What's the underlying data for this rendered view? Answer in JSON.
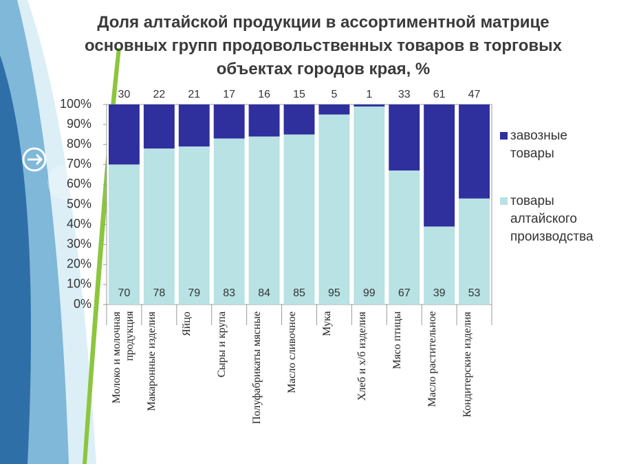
{
  "chart_data": {
    "type": "stacked_bar",
    "title": "Доля алтайской продукции в ассортиментной матрице основных групп  продовольственных товаров в торговых объектах городов края, %",
    "categories": [
      "Молоко и молочная продукция",
      "Макаронные изделия",
      "Яйцо",
      "Сыры и крупа",
      "Полуфабрикаты мясные",
      "Масло сливочное",
      "Мука",
      "Хлеб и х/б изделия",
      "Мясо птицы",
      "Масло растительное",
      "Кондитерские изделия"
    ],
    "series": [
      {
        "name": "товары алтайского производства",
        "color": "#b8e2e3",
        "values": [
          70,
          78,
          79,
          83,
          84,
          85,
          95,
          99,
          67,
          39,
          53
        ]
      },
      {
        "name": "завозные товары",
        "color": "#2f2f9e",
        "values": [
          30,
          22,
          21,
          17,
          16,
          15,
          5,
          1,
          33,
          61,
          47
        ]
      }
    ],
    "ylim": [
      0,
      100
    ],
    "yticks": [
      {
        "value": 0,
        "label": "0%"
      },
      {
        "value": 10,
        "label": "10%"
      },
      {
        "value": 20,
        "label": "20%"
      },
      {
        "value": 30,
        "label": "30%"
      },
      {
        "value": 40,
        "label": "40%"
      },
      {
        "value": 50,
        "label": "50%"
      },
      {
        "value": 60,
        "label": "60%"
      },
      {
        "value": 70,
        "label": "70%"
      },
      {
        "value": 80,
        "label": "80%"
      },
      {
        "value": 90,
        "label": "90%"
      },
      {
        "value": 100,
        "label": "100%"
      }
    ],
    "legend": "right"
  }
}
